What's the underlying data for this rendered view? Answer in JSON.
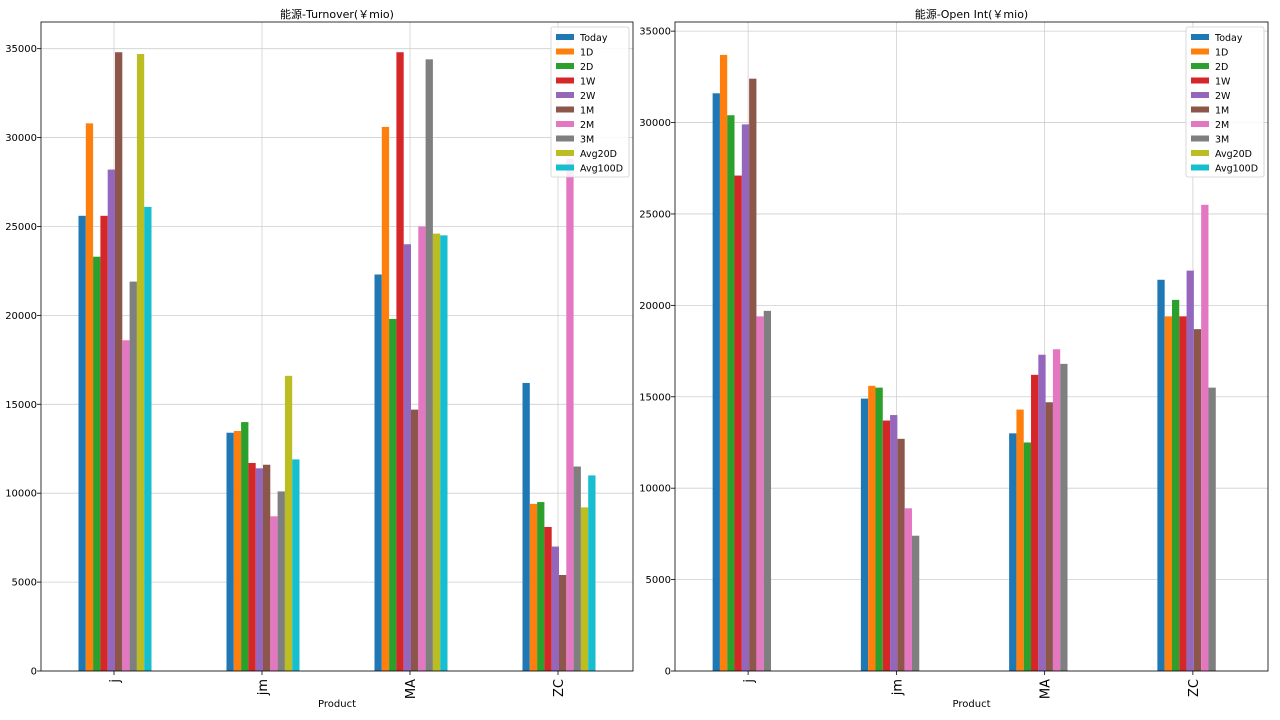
{
  "chart_data": [
    {
      "type": "bar",
      "title": "能源-Turnover(￥mio)",
      "xlabel": "Product",
      "ylabel": "",
      "categories": [
        "j",
        "jm",
        "MA",
        "ZC"
      ],
      "ylim": [
        0,
        36500
      ],
      "yticks": [
        0,
        5000,
        10000,
        15000,
        20000,
        25000,
        30000,
        35000
      ],
      "grid": true,
      "legend_position": "top-right",
      "series": [
        {
          "name": "Today",
          "color": "#1f77b4",
          "values": [
            25600,
            13400,
            22300,
            16200
          ]
        },
        {
          "name": "1D",
          "color": "#ff7f0e",
          "values": [
            30800,
            13500,
            30600,
            9400
          ]
        },
        {
          "name": "2D",
          "color": "#2ca02c",
          "values": [
            23300,
            14000,
            19800,
            9500
          ]
        },
        {
          "name": "1W",
          "color": "#d62728",
          "values": [
            25600,
            11700,
            34800,
            8100
          ]
        },
        {
          "name": "2W",
          "color": "#9467bd",
          "values": [
            28200,
            11400,
            24000,
            7000
          ]
        },
        {
          "name": "1M",
          "color": "#8c564b",
          "values": [
            34800,
            11600,
            14700,
            5400
          ]
        },
        {
          "name": "2M",
          "color": "#e377c2",
          "values": [
            18600,
            8700,
            25000,
            28800
          ]
        },
        {
          "name": "3M",
          "color": "#7f7f7f",
          "values": [
            21900,
            10100,
            34400,
            11500
          ]
        },
        {
          "name": "Avg20D",
          "color": "#bcbd22",
          "values": [
            34700,
            16600,
            24600,
            9200
          ]
        },
        {
          "name": "Avg100D",
          "color": "#17becf",
          "values": [
            26100,
            11900,
            24500,
            11000
          ]
        }
      ]
    },
    {
      "type": "bar",
      "title": "能源-Open Int(￥mio)",
      "xlabel": "Product",
      "ylabel": "",
      "categories": [
        "j",
        "jm",
        "MA",
        "ZC"
      ],
      "ylim": [
        0,
        35500
      ],
      "yticks": [
        0,
        5000,
        10000,
        15000,
        20000,
        25000,
        30000,
        35000
      ],
      "grid": true,
      "legend_position": "top-right",
      "series": [
        {
          "name": "Today",
          "color": "#1f77b4",
          "values": [
            31600,
            14900,
            13000,
            21400
          ]
        },
        {
          "name": "1D",
          "color": "#ff7f0e",
          "values": [
            33700,
            15600,
            14300,
            19400
          ]
        },
        {
          "name": "2D",
          "color": "#2ca02c",
          "values": [
            30400,
            15500,
            12500,
            20300
          ]
        },
        {
          "name": "1W",
          "color": "#d62728",
          "values": [
            27100,
            13700,
            16200,
            19400
          ]
        },
        {
          "name": "2W",
          "color": "#9467bd",
          "values": [
            29900,
            14000,
            17300,
            21900
          ]
        },
        {
          "name": "1M",
          "color": "#8c564b",
          "values": [
            32400,
            12700,
            14700,
            18700
          ]
        },
        {
          "name": "2M",
          "color": "#e377c2",
          "values": [
            19400,
            8900,
            17600,
            25500
          ]
        },
        {
          "name": "3M",
          "color": "#7f7f7f",
          "values": [
            19700,
            7400,
            16800,
            15500
          ]
        },
        {
          "name": "Avg20D",
          "color": "#bcbd22",
          "values": [
            null,
            null,
            null,
            null
          ]
        },
        {
          "name": "Avg100D",
          "color": "#17becf",
          "values": [
            null,
            null,
            null,
            null
          ]
        }
      ]
    }
  ]
}
